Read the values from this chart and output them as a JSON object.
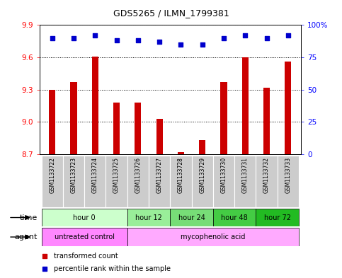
{
  "title": "GDS5265 / ILMN_1799381",
  "samples": [
    "GSM1133722",
    "GSM1133723",
    "GSM1133724",
    "GSM1133725",
    "GSM1133726",
    "GSM1133727",
    "GSM1133728",
    "GSM1133729",
    "GSM1133730",
    "GSM1133731",
    "GSM1133732",
    "GSM1133733"
  ],
  "bar_values": [
    9.3,
    9.37,
    9.61,
    9.18,
    9.18,
    9.03,
    8.72,
    8.83,
    9.37,
    9.6,
    9.32,
    9.56
  ],
  "percentile_values": [
    90,
    90,
    92,
    88,
    88,
    87,
    85,
    85,
    90,
    92,
    90,
    92
  ],
  "bar_color": "#cc0000",
  "percentile_color": "#0000cc",
  "ylim_left": [
    8.7,
    9.9
  ],
  "ylim_right": [
    0,
    100
  ],
  "yticks_left": [
    8.7,
    9.0,
    9.3,
    9.6,
    9.9
  ],
  "yticks_right": [
    0,
    25,
    50,
    75,
    100
  ],
  "time_groups": [
    {
      "label": "hour 0",
      "start": 0,
      "end": 3,
      "color": "#ccffcc"
    },
    {
      "label": "hour 12",
      "start": 4,
      "end": 5,
      "color": "#99ee99"
    },
    {
      "label": "hour 24",
      "start": 6,
      "end": 7,
      "color": "#77dd77"
    },
    {
      "label": "hour 48",
      "start": 8,
      "end": 9,
      "color": "#44cc44"
    },
    {
      "label": "hour 72",
      "start": 10,
      "end": 11,
      "color": "#22bb22"
    }
  ],
  "agent_groups": [
    {
      "label": "untreated control",
      "start": 0,
      "end": 3,
      "color": "#ff88ff"
    },
    {
      "label": "mycophenolic acid",
      "start": 4,
      "end": 11,
      "color": "#ffaaff"
    }
  ],
  "legend_bar_label": "transformed count",
  "legend_pct_label": "percentile rank within the sample",
  "sample_bg_color": "#cccccc",
  "bar_width": 0.3
}
